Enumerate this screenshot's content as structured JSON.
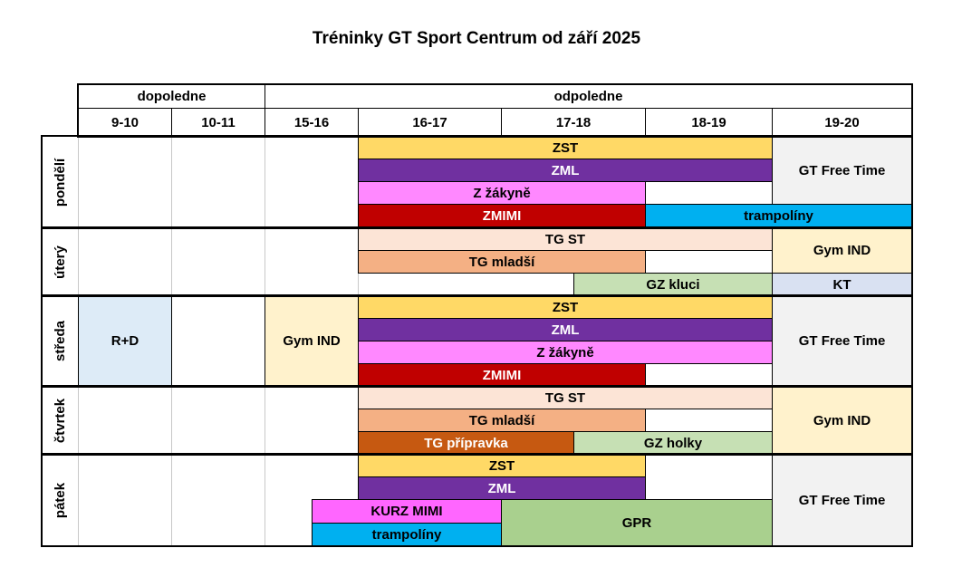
{
  "title": "Tréninky GT Sport Centrum od září 2025",
  "periods": {
    "morning": "dopoledne",
    "afternoon": "odpoledne"
  },
  "time_slots": [
    "9-10",
    "10-11",
    "15-16",
    "16-17",
    "17-18",
    "18-19",
    "19-20"
  ],
  "days": [
    "pondělí",
    "úterý",
    "středa",
    "čtvrtek",
    "pátek"
  ],
  "sessions": [
    {
      "day": "pondělí",
      "label": "ZST",
      "color": "#FFD966",
      "text_color": "#000000"
    },
    {
      "day": "pondělí",
      "label": "ZML",
      "color": "#7030A0",
      "text_color": "#FFFFFF"
    },
    {
      "day": "pondělí",
      "label": "Z žákyně",
      "color": "#FF88FF",
      "text_color": "#000000"
    },
    {
      "day": "pondělí",
      "label": "ZMIMI",
      "color": "#C00000",
      "text_color": "#FFFFFF"
    },
    {
      "day": "pondělí",
      "label": "trampolíny",
      "color": "#00B0F0",
      "text_color": "#000000"
    },
    {
      "day": "pondělí",
      "label": "GT Free Time",
      "color": "#F2F2F2",
      "text_color": "#000000"
    },
    {
      "day": "úterý",
      "label": "TG ST",
      "color": "#FCE4D6",
      "text_color": "#000000"
    },
    {
      "day": "úterý",
      "label": "TG mladší",
      "color": "#F4B084",
      "text_color": "#000000"
    },
    {
      "day": "úterý",
      "label": "GZ kluci",
      "color": "#C6E0B4",
      "text_color": "#000000"
    },
    {
      "day": "úterý",
      "label": "Gym IND",
      "color": "#FFF2CC",
      "text_color": "#000000"
    },
    {
      "day": "úterý",
      "label": "KT",
      "color": "#D9E1F2",
      "text_color": "#000000"
    },
    {
      "day": "středa",
      "label": "R+D",
      "color": "#DDEBF7",
      "text_color": "#000000"
    },
    {
      "day": "středa",
      "label": "Gym IND",
      "color": "#FFF2CC",
      "text_color": "#000000"
    },
    {
      "day": "středa",
      "label": "ZST",
      "color": "#FFD966",
      "text_color": "#000000"
    },
    {
      "day": "středa",
      "label": "ZML",
      "color": "#7030A0",
      "text_color": "#FFFFFF"
    },
    {
      "day": "středa",
      "label": "Z žákyně",
      "color": "#FF88FF",
      "text_color": "#000000"
    },
    {
      "day": "středa",
      "label": "ZMIMI",
      "color": "#C00000",
      "text_color": "#FFFFFF"
    },
    {
      "day": "středa",
      "label": "GT Free Time",
      "color": "#F2F2F2",
      "text_color": "#000000"
    },
    {
      "day": "čtvrtek",
      "label": "TG ST",
      "color": "#FCE4D6",
      "text_color": "#000000"
    },
    {
      "day": "čtvrtek",
      "label": "TG mladší",
      "color": "#F4B084",
      "text_color": "#000000"
    },
    {
      "day": "čtvrtek",
      "label": "TG přípravka",
      "color": "#C65911",
      "text_color": "#FFFFFF"
    },
    {
      "day": "čtvrtek",
      "label": "GZ holky",
      "color": "#C6E0B4",
      "text_color": "#000000"
    },
    {
      "day": "čtvrtek",
      "label": "Gym IND",
      "color": "#FFF2CC",
      "text_color": "#000000"
    },
    {
      "day": "pátek",
      "label": "ZST",
      "color": "#FFD966",
      "text_color": "#000000"
    },
    {
      "day": "pátek",
      "label": "ZML",
      "color": "#7030A0",
      "text_color": "#FFFFFF"
    },
    {
      "day": "pátek",
      "label": "KURZ MIMI",
      "color": "#FF66FF",
      "text_color": "#000000"
    },
    {
      "day": "pátek",
      "label": "trampolíny",
      "color": "#00B0F0",
      "text_color": "#000000"
    },
    {
      "day": "pátek",
      "label": "GPR",
      "color": "#A9D08E",
      "text_color": "#000000"
    },
    {
      "day": "pátek",
      "label": "GT Free Time",
      "color": "#F2F2F2",
      "text_color": "#000000"
    }
  ]
}
